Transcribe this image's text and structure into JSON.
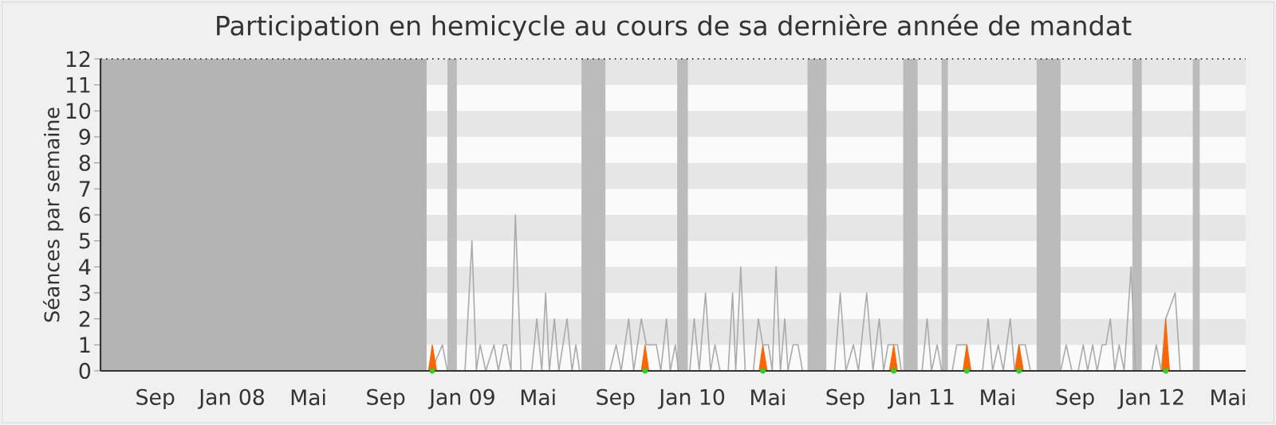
{
  "chart_data": {
    "type": "line",
    "title": "Participation en hemicycle au cours de sa dernière année de mandat",
    "ylabel": "Séances par semaine",
    "xlim": [
      "2007-06-06",
      "2012-05-29"
    ],
    "ylim": [
      0,
      12
    ],
    "xticks": [
      {
        "value": "2007-09-01",
        "label": "Sep"
      },
      {
        "value": "2008-01-01",
        "label": "Jan 08"
      },
      {
        "value": "2008-05-01",
        "label": "Mai"
      },
      {
        "value": "2008-09-01",
        "label": "Sep"
      },
      {
        "value": "2009-01-01",
        "label": "Jan 09"
      },
      {
        "value": "2009-05-01",
        "label": "Mai"
      },
      {
        "value": "2009-09-01",
        "label": "Sep"
      },
      {
        "value": "2010-01-01",
        "label": "Jan 10"
      },
      {
        "value": "2010-05-01",
        "label": "Mai"
      },
      {
        "value": "2010-09-01",
        "label": "Sep"
      },
      {
        "value": "2011-01-01",
        "label": "Jan 11"
      },
      {
        "value": "2011-05-01",
        "label": "Mai"
      },
      {
        "value": "2011-09-01",
        "label": "Sep"
      },
      {
        "value": "2012-01-01",
        "label": "Jan 12"
      },
      {
        "value": "2012-05-01",
        "label": "Mai"
      }
    ],
    "yticks": [
      0,
      1,
      2,
      3,
      4,
      5,
      6,
      7,
      8,
      9,
      10,
      11,
      12
    ],
    "bands": [
      {
        "axis": "y",
        "from": 1,
        "to": 2,
        "color": "#e6e6e6"
      },
      {
        "axis": "y",
        "from": 3,
        "to": 4,
        "color": "#e6e6e6"
      },
      {
        "axis": "y",
        "from": 5,
        "to": 6,
        "color": "#e6e6e6"
      },
      {
        "axis": "y",
        "from": 7,
        "to": 8,
        "color": "#e6e6e6"
      },
      {
        "axis": "y",
        "from": 9,
        "to": 10,
        "color": "#e6e6e6"
      },
      {
        "axis": "y",
        "from": 11,
        "to": 12,
        "color": "#e6e6e6"
      },
      {
        "axis": "x",
        "from": "2007-06-06",
        "to": "2008-11-05",
        "color": "#b4b4b4"
      },
      {
        "axis": "x",
        "from": "2008-12-08",
        "to": "2008-12-23",
        "color": "#bbbbbb"
      },
      {
        "axis": "x",
        "from": "2009-07-09",
        "to": "2009-08-16",
        "color": "#bbbbbb"
      },
      {
        "axis": "x",
        "from": "2009-12-08",
        "to": "2009-12-25",
        "color": "#bbbbbb"
      },
      {
        "axis": "x",
        "from": "2010-07-03",
        "to": "2010-08-02",
        "color": "#bbbbbb"
      },
      {
        "axis": "x",
        "from": "2010-12-02",
        "to": "2010-12-25",
        "color": "#bbbbbb"
      },
      {
        "axis": "x",
        "from": "2011-02-01",
        "to": "2011-02-11",
        "color": "#bbbbbb"
      },
      {
        "axis": "x",
        "from": "2011-07-02",
        "to": "2011-08-09",
        "color": "#bbbbbb"
      },
      {
        "axis": "x",
        "from": "2011-12-01",
        "to": "2011-12-16",
        "color": "#bbbbbb"
      },
      {
        "axis": "x",
        "from": "2012-03-06",
        "to": "2012-03-17",
        "color": "#bbbbbb"
      }
    ],
    "ref_lines": [
      {
        "axis": "y",
        "value": 12,
        "color": "#000000",
        "line_style": "dotted"
      }
    ],
    "series": [
      {
        "color": "#aaaaaa",
        "x": [
          "2008-11-05",
          "2008-11-13",
          "2008-11-30",
          "2008-12-08",
          "2009-01-05",
          "2009-01-16",
          "2009-01-23",
          "2009-01-29",
          "2009-02-07",
          "2009-02-20",
          "2009-02-27",
          "2009-03-07",
          "2009-03-12",
          "2009-03-19",
          "2009-03-26",
          "2009-04-04",
          "2009-04-21",
          "2009-04-29",
          "2009-05-07",
          "2009-05-13",
          "2009-05-19",
          "2009-05-27",
          "2009-06-03",
          "2009-06-16",
          "2009-06-24",
          "2009-06-30",
          "2009-07-06",
          "2009-08-23",
          "2009-09-02",
          "2009-09-10",
          "2009-09-22",
          "2009-09-30",
          "2009-10-12",
          "2009-10-20",
          "2009-10-28",
          "2009-11-05",
          "2009-11-12",
          "2009-11-21",
          "2009-11-27",
          "2009-12-05",
          "2009-12-10",
          "2009-12-28",
          "2010-01-04",
          "2010-01-12",
          "2010-01-22",
          "2010-01-30",
          "2010-02-06",
          "2010-02-14",
          "2010-02-27",
          "2010-03-06",
          "2010-03-11",
          "2010-03-19",
          "2010-03-26",
          "2010-04-08",
          "2010-04-16",
          "2010-04-23",
          "2010-05-02",
          "2010-05-08",
          "2010-05-14",
          "2010-05-21",
          "2010-05-28",
          "2010-06-02",
          "2010-06-10",
          "2010-06-18",
          "2010-06-25",
          "2010-08-15",
          "2010-08-24",
          "2010-09-02",
          "2010-09-14",
          "2010-09-22",
          "2010-10-05",
          "2010-10-15",
          "2010-10-25",
          "2010-11-01",
          "2010-11-08",
          "2010-11-17",
          "2010-11-23",
          "2010-11-29",
          "2011-01-01",
          "2011-01-09",
          "2011-01-16",
          "2011-01-25",
          "2011-02-01",
          "2011-02-18",
          "2011-02-25",
          "2011-03-05",
          "2011-03-13",
          "2011-03-20",
          "2011-04-07",
          "2011-04-16",
          "2011-04-23",
          "2011-05-02",
          "2011-05-10",
          "2011-05-21",
          "2011-05-28",
          "2011-06-04",
          "2011-06-14",
          "2011-06-22",
          "2011-08-09",
          "2011-08-18",
          "2011-08-27",
          "2011-09-06",
          "2011-09-14",
          "2011-09-21",
          "2011-09-29",
          "2011-10-06",
          "2011-10-14",
          "2011-10-20",
          "2011-10-27",
          "2011-11-03",
          "2011-11-10",
          "2011-11-18",
          "2011-11-29",
          "2011-12-06",
          "2012-01-01",
          "2012-01-08",
          "2012-01-16",
          "2012-01-23",
          "2012-02-07",
          "2012-02-15",
          "2012-05-29"
        ],
        "values": [
          0,
          0,
          1,
          0,
          0,
          5,
          0,
          1,
          0,
          1,
          0,
          1,
          1,
          0,
          6,
          0,
          0,
          2,
          0,
          3,
          0,
          2,
          0,
          2,
          0,
          1,
          0,
          0,
          1,
          0,
          2,
          0,
          2,
          1,
          1,
          1,
          0,
          2,
          0,
          1,
          0,
          0,
          2,
          0,
          3,
          0,
          1,
          0,
          0,
          3,
          0,
          4,
          0,
          0,
          2,
          1,
          1,
          0,
          4,
          0,
          2,
          0,
          1,
          1,
          0,
          0,
          3,
          0,
          1,
          0,
          3,
          0,
          2,
          0,
          1,
          1,
          1,
          0,
          0,
          2,
          0,
          1,
          0,
          0,
          1,
          1,
          1,
          0,
          0,
          2,
          0,
          1,
          0,
          2,
          0,
          1,
          1,
          0,
          0,
          1,
          0,
          0,
          1,
          0,
          1,
          0,
          1,
          1,
          2,
          0,
          1,
          0,
          4,
          0,
          0,
          1,
          0,
          2,
          3,
          0,
          0
        ]
      },
      {
        "type": "area",
        "color": "#ff6600",
        "x": [
          "2008-11-05",
          "2008-11-08",
          "2008-11-14",
          "2008-11-21",
          "2009-10-12",
          "2009-10-18",
          "2009-10-24",
          "2010-04-17",
          "2010-04-23",
          "2010-04-30",
          "2010-11-10",
          "2010-11-17",
          "2010-11-23",
          "2011-03-07",
          "2011-03-13",
          "2011-03-19",
          "2011-05-29",
          "2011-06-04",
          "2011-06-11",
          "2012-01-17",
          "2012-01-23",
          "2012-01-29",
          "2012-05-29"
        ],
        "values": [
          0,
          0,
          1,
          0,
          0,
          1,
          0,
          0,
          1,
          0,
          0,
          1,
          0,
          0,
          1,
          0,
          0,
          1,
          0,
          0,
          2,
          0,
          0
        ]
      },
      {
        "type": "scatter",
        "color": "#33cc33",
        "x": [
          "2008-11-14",
          "2009-10-18",
          "2010-04-23",
          "2010-11-17",
          "2011-03-13",
          "2011-06-04",
          "2012-01-23"
        ],
        "values": [
          0,
          0,
          0,
          0,
          0,
          0,
          0
        ]
      }
    ]
  }
}
